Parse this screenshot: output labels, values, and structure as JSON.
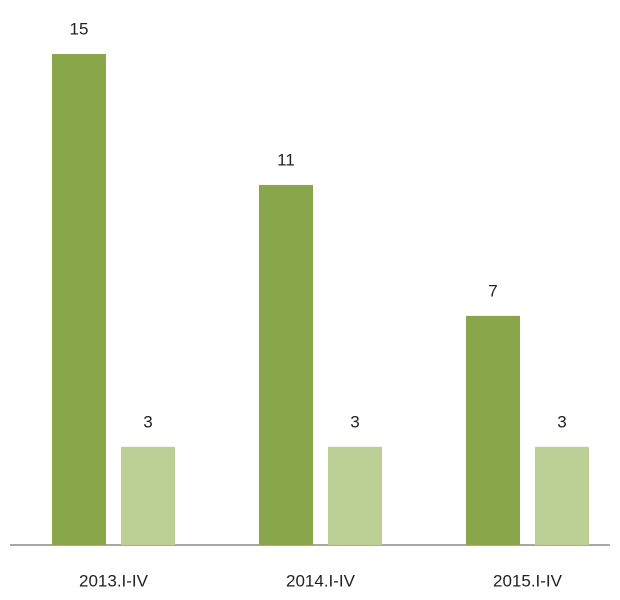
{
  "chart_data": {
    "type": "bar",
    "categories": [
      "2013.I-IV",
      "2014.I-IV",
      "2015.I-IV"
    ],
    "series": [
      {
        "color": "#8aa64b",
        "values": [
          15,
          11,
          7
        ]
      },
      {
        "color": "#bccf95",
        "values": [
          3,
          3,
          3
        ]
      }
    ]
  }
}
